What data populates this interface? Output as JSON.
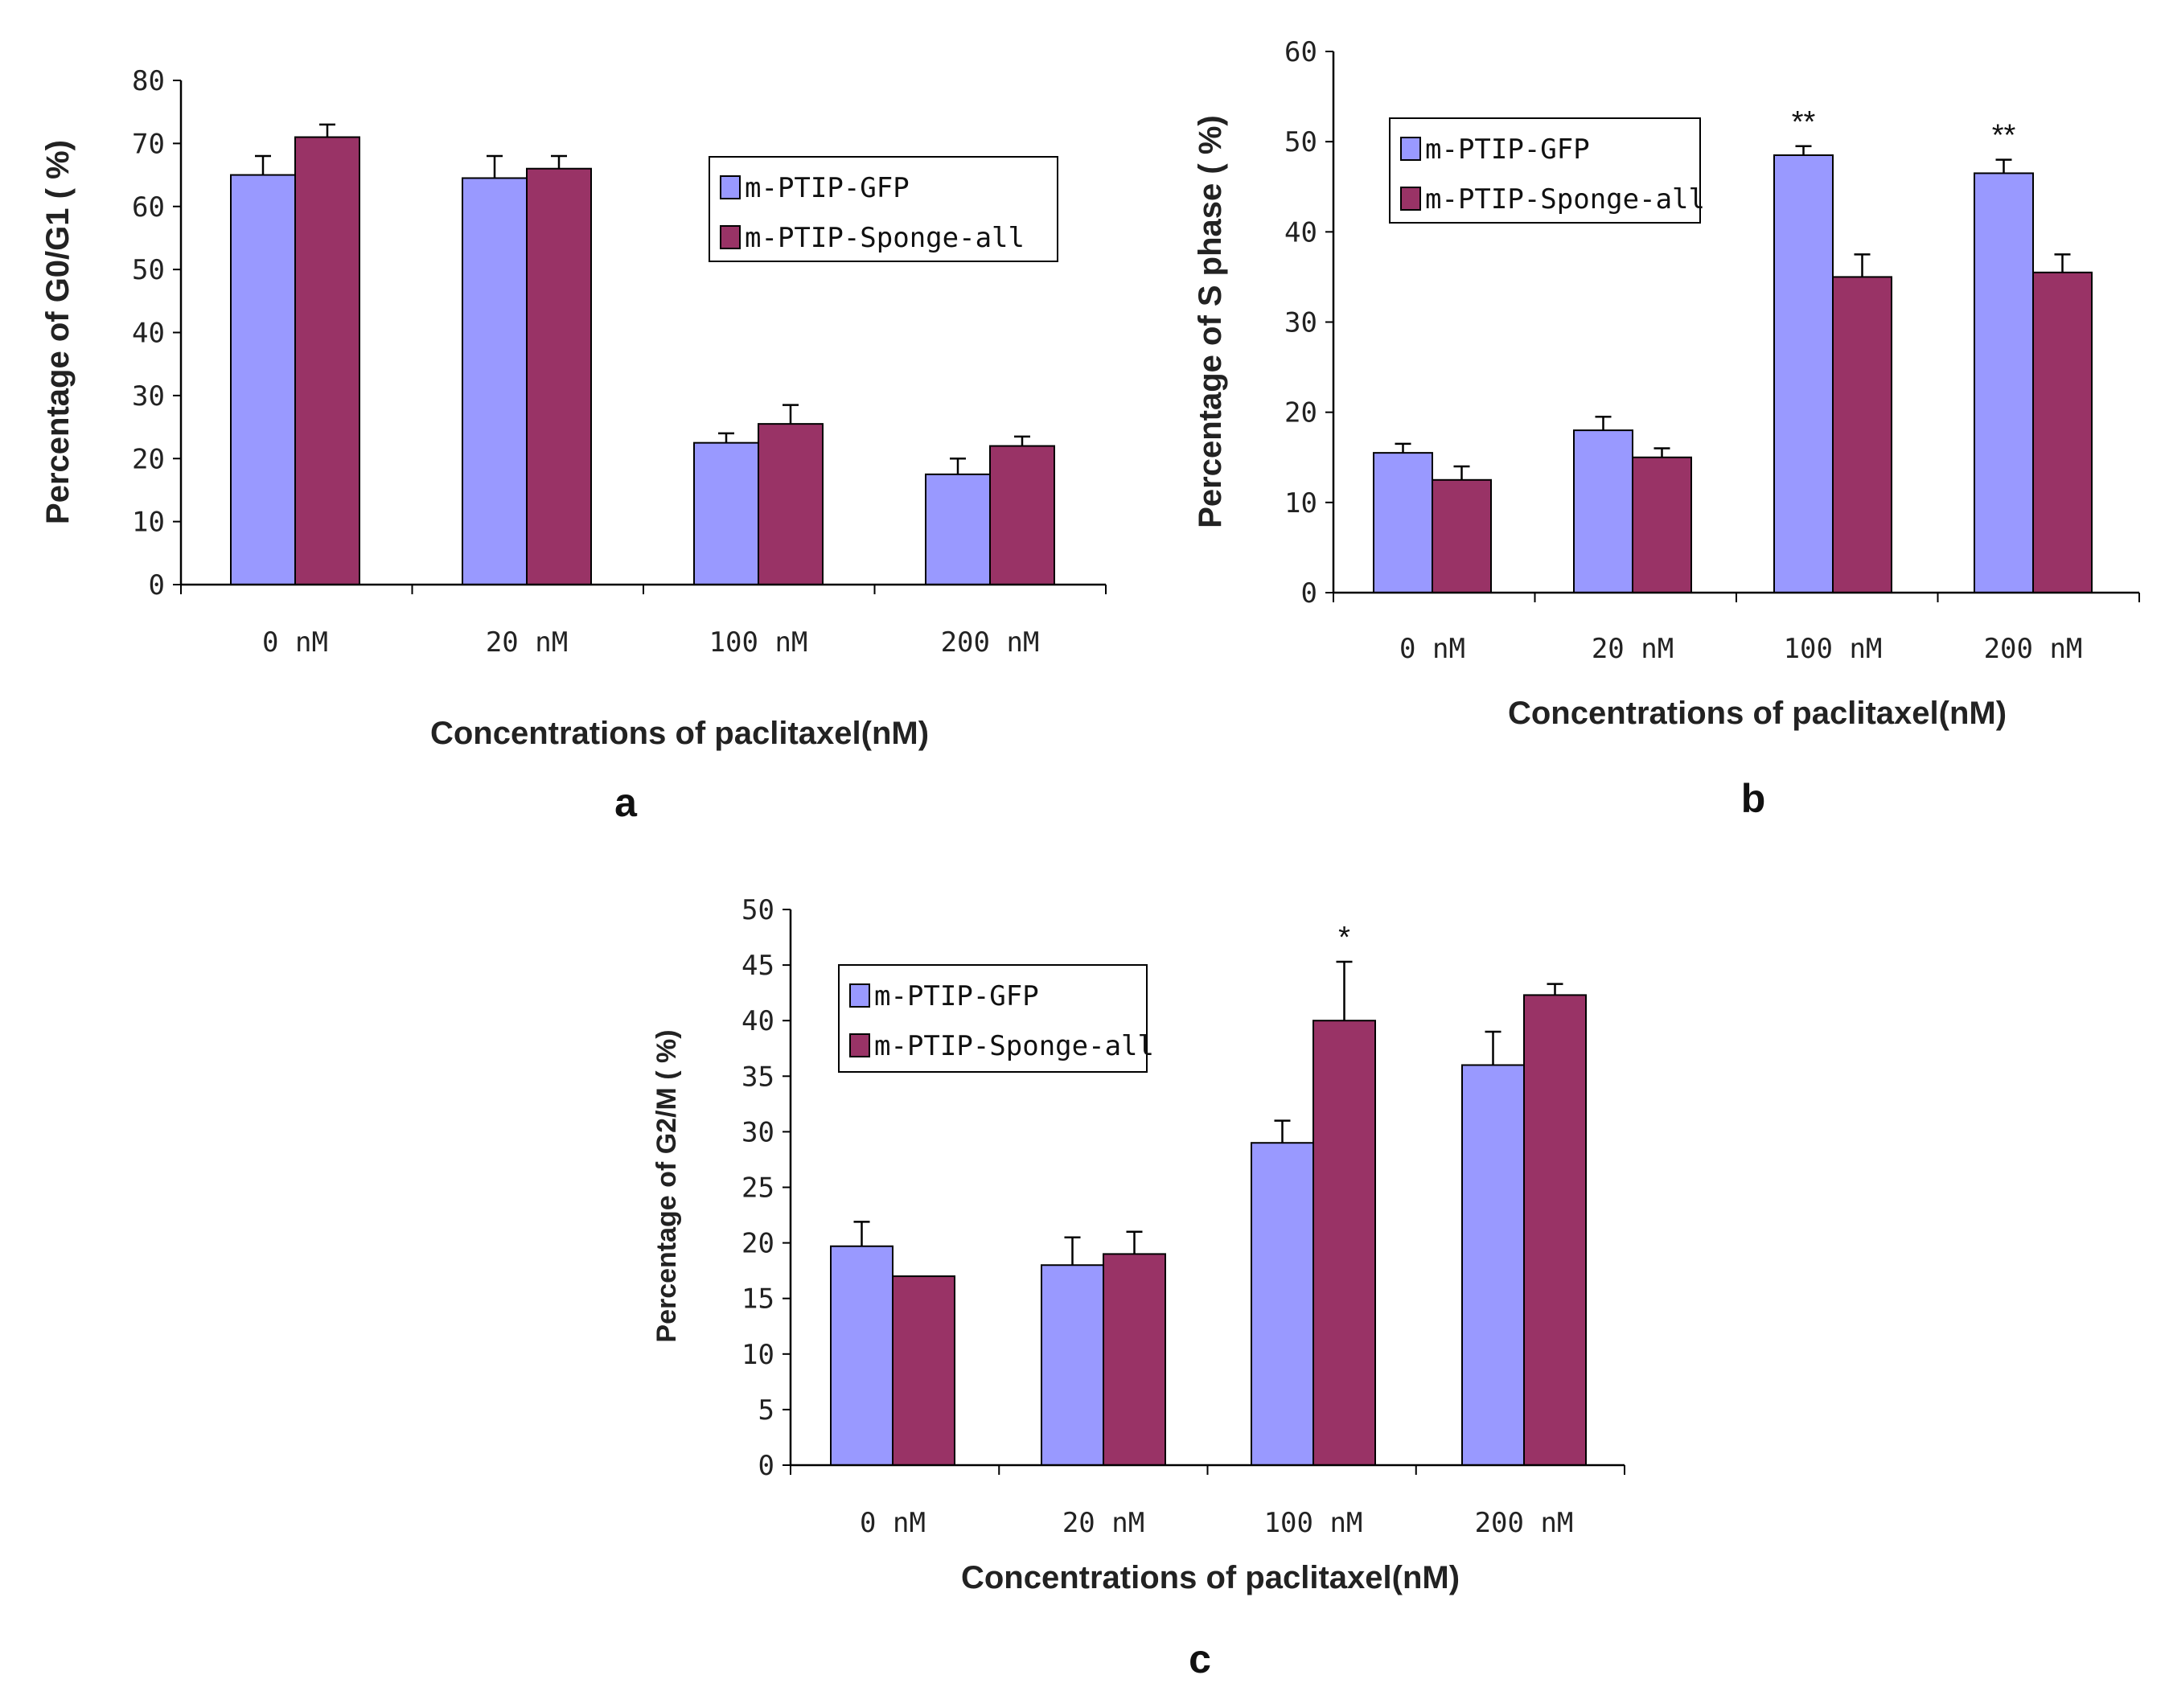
{
  "figure": {
    "colors": {
      "gfp": "#9999ff",
      "sponge": "#993366",
      "axis": "#000000"
    }
  },
  "chart_data": [
    {
      "panel": "a",
      "type": "bar",
      "title": "",
      "xlabel": "Concentrations of paclitaxel(nM)",
      "ylabel": "Percentage of G0/G1 ( %)",
      "categories": [
        "0 nM",
        "20 nM",
        "100 nM",
        "200 nM"
      ],
      "ylim": [
        0,
        80
      ],
      "yticks": [
        0,
        10,
        20,
        30,
        40,
        50,
        60,
        70,
        80
      ],
      "series": [
        {
          "name": "m-PTIP-GFP",
          "values": [
            65,
            64.5,
            22.5,
            17.5
          ],
          "errors": [
            3,
            3.5,
            1.5,
            2.5
          ]
        },
        {
          "name": "m-PTIP-Sponge-all",
          "values": [
            71,
            66,
            25.5,
            22
          ],
          "errors": [
            2,
            2,
            3,
            1.5
          ]
        }
      ],
      "significance": [
        "",
        "",
        "",
        ""
      ],
      "legend": "upper right"
    },
    {
      "panel": "b",
      "type": "bar",
      "title": "",
      "xlabel": "Concentrations of paclitaxel(nM)",
      "ylabel": "Percentage of S phase ( %)",
      "categories": [
        "0 nM",
        "20 nM",
        "100 nM",
        "200 nM"
      ],
      "ylim": [
        0,
        60
      ],
      "yticks": [
        0,
        10,
        20,
        30,
        40,
        50,
        60
      ],
      "series": [
        {
          "name": "m-PTIP-GFP",
          "values": [
            15.5,
            18,
            48.5,
            46.5
          ],
          "errors": [
            1,
            1.5,
            1,
            1.5
          ]
        },
        {
          "name": "m-PTIP-Sponge-all",
          "values": [
            12.5,
            15,
            35,
            35.5
          ],
          "errors": [
            1.5,
            1,
            2.5,
            2
          ]
        }
      ],
      "significance": [
        "",
        "",
        "**",
        "**"
      ],
      "legend": "upper left"
    },
    {
      "panel": "c",
      "type": "bar",
      "title": "",
      "xlabel": "Concentrations of paclitaxel(nM)",
      "ylabel": "Percentage of G2/M ( %)",
      "categories": [
        "0 nM",
        "20 nM",
        "100 nM",
        "200 nM"
      ],
      "ylim": [
        0,
        50
      ],
      "yticks": [
        0,
        5,
        10,
        15,
        20,
        25,
        30,
        35,
        40,
        45,
        50
      ],
      "series": [
        {
          "name": "m-PTIP-GFP",
          "values": [
            19.7,
            18,
            29,
            36
          ],
          "errors": [
            2.2,
            2.5,
            2,
            3
          ]
        },
        {
          "name": "m-PTIP-Sponge-all",
          "values": [
            17,
            19,
            40,
            42.3
          ],
          "errors": [
            0,
            2,
            5.3,
            1
          ]
        }
      ],
      "significance": [
        "",
        "",
        "*",
        ""
      ],
      "legend": "upper left"
    }
  ]
}
